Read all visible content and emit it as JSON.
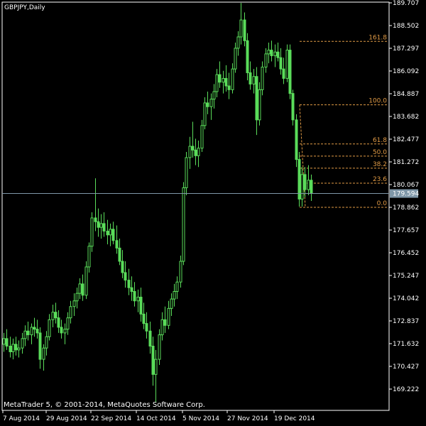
{
  "window": {
    "title": "GBPJPY,Daily"
  },
  "footer": {
    "copyright": "MetaTrader 5, © 2001-2014, MetaQuotes Software Corp."
  },
  "colors": {
    "background": "#000000",
    "axis": "#ffffff",
    "candle": "#5adc5a",
    "fib_line": "#e09a45",
    "price_line": "#7f97a8",
    "price_badge": "#7f97a8"
  },
  "chart_data": {
    "type": "candlestick",
    "symbol": "GBPJPY",
    "timeframe": "Daily",
    "y_ticks": [
      "189.707",
      "188.502",
      "187.297",
      "186.092",
      "184.887",
      "183.682",
      "182.477",
      "181.272",
      "180.067",
      "178.862",
      "177.657",
      "176.452",
      "175.247",
      "174.042",
      "172.837",
      "171.632",
      "170.427",
      "169.222"
    ],
    "x_ticks": [
      "7 Aug 2014",
      "29 Aug 2014",
      "22 Sep 2014",
      "14 Oct 2014",
      "5 Nov 2014",
      "27 Nov 2014",
      "19 Dec 2014"
    ],
    "ylim": [
      168.45,
      189.707
    ],
    "current_price": "179.594",
    "fibonacci": {
      "low": 178.86,
      "high": 184.3,
      "levels": [
        {
          "label": "0.0",
          "ratio": 0.0
        },
        {
          "label": "23.6",
          "ratio": 0.236
        },
        {
          "label": "38.2",
          "ratio": 0.382
        },
        {
          "label": "50.0",
          "ratio": 0.5
        },
        {
          "label": "61.8",
          "ratio": 0.618
        },
        {
          "label": "100.0",
          "ratio": 1.0
        },
        {
          "label": "161.8",
          "ratio": 1.618
        }
      ]
    },
    "candles": [
      [
        171.6,
        172.2,
        171.2,
        171.9
      ],
      [
        171.9,
        172.4,
        171.3,
        171.5
      ],
      [
        171.5,
        172.0,
        170.9,
        171.2
      ],
      [
        171.2,
        171.9,
        170.8,
        171.6
      ],
      [
        171.6,
        172.0,
        171.0,
        171.3
      ],
      [
        171.3,
        171.8,
        170.9,
        171.4
      ],
      [
        171.4,
        172.2,
        171.1,
        171.9
      ],
      [
        171.9,
        172.6,
        171.5,
        172.3
      ],
      [
        172.3,
        172.8,
        171.8,
        172.1
      ],
      [
        172.1,
        172.7,
        171.6,
        172.5
      ],
      [
        172.5,
        173.0,
        172.0,
        172.4
      ],
      [
        172.4,
        172.9,
        171.9,
        172.2
      ],
      [
        172.2,
        172.5,
        170.3,
        170.8
      ],
      [
        170.8,
        171.6,
        170.2,
        171.4
      ],
      [
        171.4,
        172.3,
        171.0,
        172.0
      ],
      [
        172.0,
        173.2,
        171.8,
        172.9
      ],
      [
        172.9,
        173.7,
        172.5,
        173.3
      ],
      [
        173.3,
        173.8,
        172.7,
        173.0
      ],
      [
        173.0,
        173.4,
        172.2,
        172.5
      ],
      [
        172.5,
        172.9,
        171.9,
        172.2
      ],
      [
        172.2,
        172.7,
        171.6,
        172.4
      ],
      [
        172.4,
        173.3,
        172.1,
        173.0
      ],
      [
        173.0,
        173.9,
        172.7,
        173.6
      ],
      [
        173.6,
        174.3,
        173.1,
        173.9
      ],
      [
        173.9,
        174.6,
        173.5,
        174.3
      ],
      [
        174.3,
        175.1,
        174.0,
        174.8
      ],
      [
        174.8,
        175.3,
        173.9,
        174.2
      ],
      [
        174.2,
        176.0,
        174.0,
        175.7
      ],
      [
        175.7,
        177.0,
        175.4,
        176.8
      ],
      [
        176.8,
        178.6,
        176.5,
        178.3
      ],
      [
        178.3,
        180.4,
        177.6,
        178.1
      ],
      [
        178.1,
        178.8,
        177.3,
        177.8
      ],
      [
        177.8,
        178.5,
        177.2,
        178.0
      ],
      [
        178.0,
        178.6,
        177.3,
        177.6
      ],
      [
        177.6,
        178.2,
        176.9,
        177.4
      ],
      [
        177.4,
        178.0,
        176.8,
        177.7
      ],
      [
        177.7,
        178.1,
        176.9,
        177.1
      ],
      [
        177.1,
        177.9,
        176.4,
        176.7
      ],
      [
        176.7,
        177.2,
        175.8,
        176.0
      ],
      [
        176.0,
        176.6,
        175.1,
        175.4
      ],
      [
        175.4,
        176.0,
        174.6,
        175.0
      ],
      [
        175.0,
        175.6,
        174.2,
        174.6
      ],
      [
        174.6,
        175.2,
        173.9,
        174.4
      ],
      [
        174.4,
        174.9,
        173.6,
        173.9
      ],
      [
        173.9,
        174.5,
        173.3,
        174.1
      ],
      [
        174.1,
        174.6,
        172.8,
        173.2
      ],
      [
        173.2,
        173.8,
        172.4,
        172.7
      ],
      [
        172.7,
        173.3,
        171.9,
        172.3
      ],
      [
        172.3,
        172.8,
        171.1,
        171.5
      ],
      [
        171.5,
        172.0,
        169.4,
        170.0
      ],
      [
        170.0,
        171.3,
        168.5,
        170.8
      ],
      [
        170.8,
        172.4,
        170.5,
        172.1
      ],
      [
        172.1,
        173.3,
        171.8,
        172.9
      ],
      [
        172.9,
        173.6,
        172.2,
        172.6
      ],
      [
        172.6,
        173.9,
        172.4,
        173.5
      ],
      [
        173.5,
        174.3,
        173.1,
        174.0
      ],
      [
        174.0,
        174.8,
        173.6,
        174.4
      ],
      [
        174.4,
        175.2,
        174.0,
        174.9
      ],
      [
        174.9,
        176.3,
        174.6,
        176.0
      ],
      [
        176.0,
        180.2,
        175.8,
        179.9
      ],
      [
        179.9,
        181.8,
        179.5,
        181.5
      ],
      [
        181.5,
        182.6,
        180.9,
        182.1
      ],
      [
        182.1,
        183.4,
        181.5,
        181.9
      ],
      [
        181.9,
        182.5,
        181.1,
        181.6
      ],
      [
        181.6,
        182.4,
        181.0,
        182.0
      ],
      [
        182.0,
        183.5,
        181.8,
        183.2
      ],
      [
        183.2,
        184.7,
        183.0,
        184.4
      ],
      [
        184.4,
        185.0,
        183.8,
        184.2
      ],
      [
        184.2,
        184.9,
        183.5,
        184.6
      ],
      [
        184.6,
        185.4,
        184.1,
        185.0
      ],
      [
        185.0,
        186.2,
        184.7,
        185.9
      ],
      [
        185.9,
        186.6,
        185.2,
        185.5
      ],
      [
        185.5,
        186.1,
        184.9,
        185.7
      ],
      [
        185.7,
        186.4,
        185.0,
        185.3
      ],
      [
        185.3,
        186.0,
        184.6,
        185.1
      ],
      [
        185.1,
        186.5,
        184.9,
        186.2
      ],
      [
        186.2,
        187.6,
        186.0,
        187.3
      ],
      [
        187.3,
        188.2,
        186.9,
        187.9
      ],
      [
        187.9,
        189.7,
        187.5,
        188.8
      ],
      [
        188.8,
        189.2,
        187.4,
        187.7
      ],
      [
        187.7,
        188.1,
        185.6,
        186.0
      ],
      [
        186.0,
        186.6,
        185.1,
        185.4
      ],
      [
        185.4,
        186.2,
        184.9,
        185.8
      ],
      [
        185.8,
        186.3,
        182.7,
        183.5
      ],
      [
        183.5,
        185.5,
        183.2,
        185.1
      ],
      [
        185.1,
        186.6,
        184.8,
        186.3
      ],
      [
        186.3,
        187.3,
        186.0,
        187.0
      ],
      [
        187.0,
        187.6,
        186.5,
        187.2
      ],
      [
        187.2,
        187.7,
        186.6,
        186.9
      ],
      [
        186.9,
        187.5,
        186.3,
        187.1
      ],
      [
        187.1,
        187.6,
        186.6,
        186.8
      ],
      [
        186.8,
        187.3,
        185.9,
        186.2
      ],
      [
        186.2,
        186.8,
        185.4,
        185.7
      ],
      [
        185.7,
        187.5,
        185.5,
        187.2
      ],
      [
        187.2,
        187.5,
        184.6,
        184.9
      ],
      [
        184.9,
        185.1,
        183.2,
        183.5
      ],
      [
        183.5,
        183.8,
        181.0,
        181.4
      ],
      [
        181.4,
        181.8,
        178.9,
        179.3
      ],
      [
        179.3,
        181.0,
        178.9,
        180.6
      ],
      [
        180.6,
        181.0,
        179.4,
        179.8
      ],
      [
        179.8,
        181.1,
        179.5,
        180.3
      ],
      [
        180.3,
        180.6,
        179.2,
        179.6
      ]
    ]
  }
}
